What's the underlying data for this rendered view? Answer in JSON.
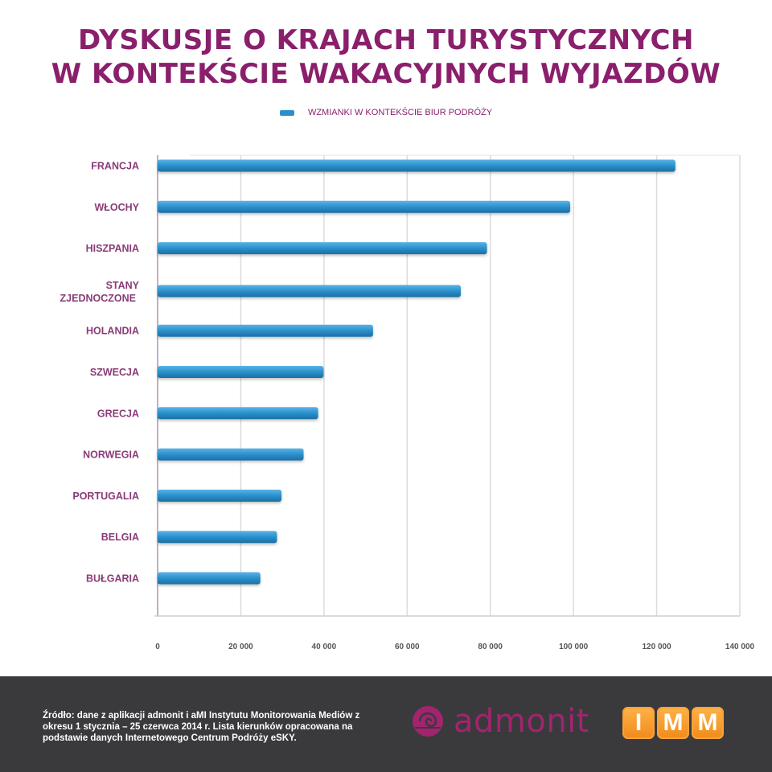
{
  "title_line1": "DYSKUSJE O KRAJACH TURYSTYCZNYCH",
  "title_line2": "W KONTEKŚCIE WAKACYJNYCH WYJAZDÓW",
  "legend_label": "WZMIANKI  W KONTEKŚCIE BIUR PODRÓŻY",
  "colors": {
    "title": "#8a1f6c",
    "bar": "#2a90cc",
    "category_label": "#8a3b78",
    "footer_bg": "#3a3a3c",
    "admonit": "#a2246f",
    "imm_orange": "#f08a1b"
  },
  "chart_data": {
    "type": "bar",
    "orientation": "horizontal",
    "categories": [
      "FRANCJA",
      "WŁOCHY",
      "HISZPANIA",
      "STANY\nZJEDNOCZONE",
      "HOLANDIA",
      "SZWECJA",
      "GRECJA",
      "NORWEGIA",
      "PORTUGALIA",
      "BELGIA",
      "BUŁGARIA"
    ],
    "series": [
      {
        "name": "WZMIANKI  W KONTEKŚCIE BIUR PODRÓŻY",
        "values": [
          124500,
          99200,
          79200,
          72900,
          51800,
          39900,
          38600,
          35100,
          29800,
          28700,
          24700
        ]
      }
    ],
    "x_ticks": [
      "0",
      "20 000",
      "40 000",
      "60 000",
      "80 000",
      "100 000",
      "120 000",
      "140 000"
    ],
    "xlim": [
      0,
      140000
    ],
    "grid": true,
    "legend": "top-center"
  },
  "footer": {
    "source_text": "Źródło: dane z aplikacji admonit i aMI Instytutu Monitorowania Mediów z okresu 1 stycznia – 25 czerwca 2014 r.  Lista kierunków opracowana na podstawie danych Internetowego Centrum Podróży eSKY.",
    "admonit_logo": "admonit",
    "imm_logo": [
      "I",
      "M",
      "M"
    ]
  }
}
